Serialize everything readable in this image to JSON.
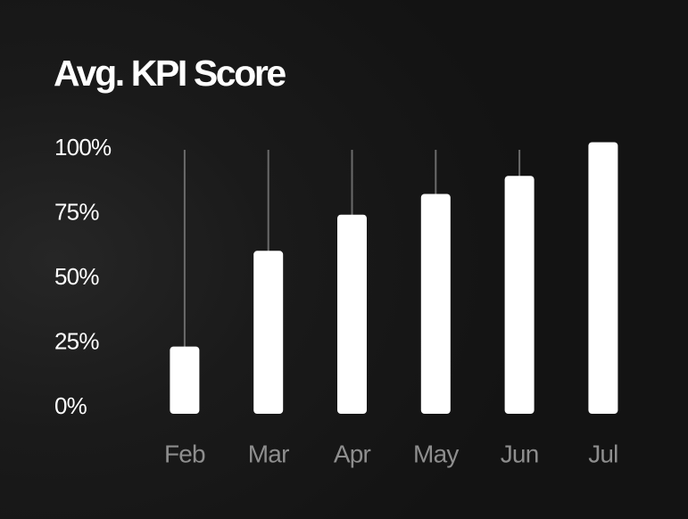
{
  "chart_data": {
    "type": "bar",
    "title": "Avg. KPI Score",
    "categories": [
      "Feb",
      "Mar",
      "Apr",
      "May",
      "Jun",
      "Jul"
    ],
    "values": [
      26,
      63,
      77,
      85,
      92,
      105
    ],
    "ylim": [
      0,
      100
    ],
    "yticks": [
      0,
      25,
      50,
      75,
      100
    ],
    "ytick_labels": [
      "0%",
      "25%",
      "50%",
      "75%",
      "100%"
    ],
    "xlabel": "",
    "ylabel": "",
    "grid": false,
    "legend": "none",
    "colors": {
      "bar": "#ffffff",
      "track": "#6b6b6b",
      "ytick": "#ffffff",
      "xtick": "#8e8e8e",
      "title": "#ffffff"
    }
  }
}
